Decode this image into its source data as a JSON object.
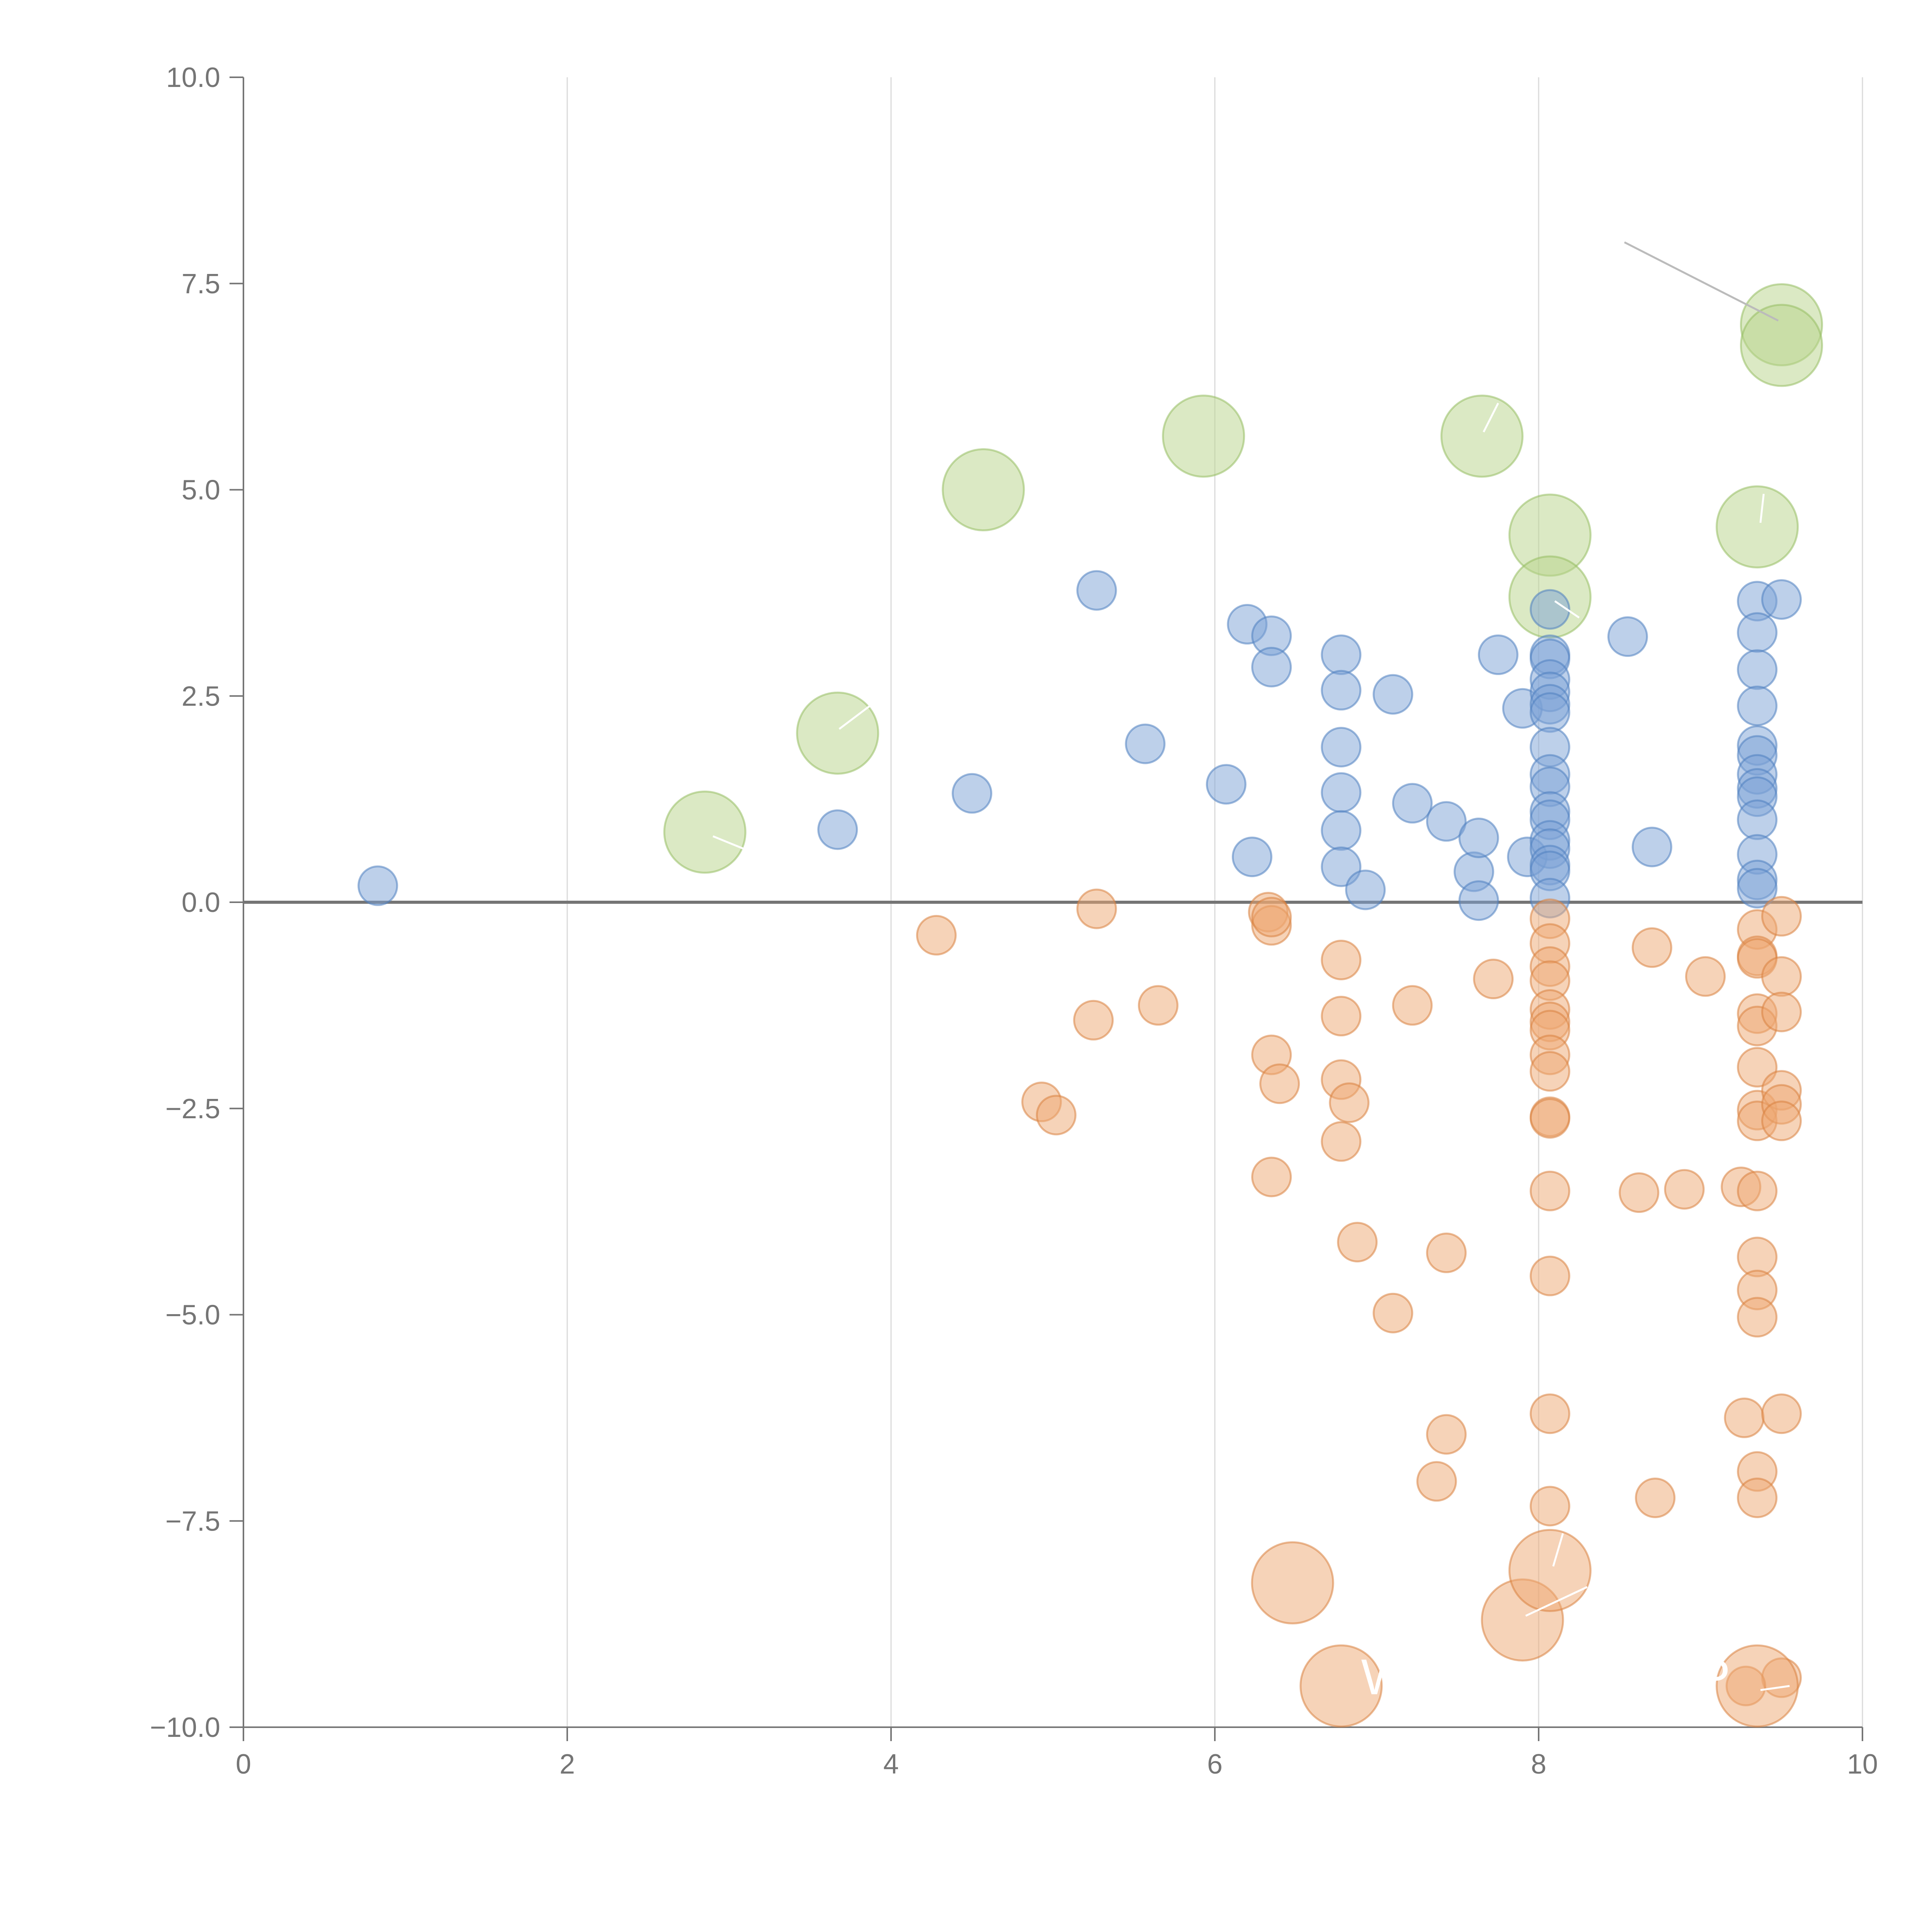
{
  "chart_data": {
    "type": "scatter",
    "title": "",
    "xlabel": "",
    "ylabel": "",
    "xlim": [
      0,
      10
    ],
    "ylim": [
      -10,
      10
    ],
    "x_ticks": [
      0,
      2,
      4,
      6,
      8,
      10
    ],
    "x_tick_labels": [
      "0",
      "2",
      "4",
      "6",
      "8",
      "10"
    ],
    "y_ticks": [
      10,
      7.5,
      5,
      2.5,
      0,
      -2.5,
      -5,
      -7.5,
      -10
    ],
    "y_tick_labels": [
      "10.0",
      "7.5",
      "5.0",
      "2.5",
      "0.0",
      "−2.5",
      "−5.0",
      "−7.5",
      "−10.0"
    ],
    "grid": "vertical",
    "reference_line_y": 0,
    "colors": {
      "positive": "#7ba1d6",
      "positive_stroke": "#4f7fc0",
      "negative": "#eea872",
      "negative_stroke": "#d9823f",
      "highlight": "#b7d38a",
      "highlight_stroke": "#96bd62",
      "axis": "#757575",
      "grid": "#dadada",
      "leader": "#bbbbbb"
    },
    "series": [
      {
        "name": "highlight",
        "size": "large",
        "points": [
          [
            2.85,
            0.85
          ],
          [
            3.67,
            2.05
          ],
          [
            4.57,
            5.0
          ],
          [
            5.93,
            5.65
          ],
          [
            7.65,
            5.65
          ],
          [
            8.07,
            4.45
          ],
          [
            8.07,
            3.7
          ],
          [
            9.35,
            4.55
          ],
          [
            9.5,
            7.0
          ],
          [
            9.5,
            6.75
          ]
        ]
      },
      {
        "name": "positive",
        "size": "small",
        "points": [
          [
            0.83,
            0.2
          ],
          [
            3.67,
            0.88
          ],
          [
            4.5,
            1.32
          ],
          [
            5.27,
            3.78
          ],
          [
            5.57,
            1.92
          ],
          [
            6.07,
            1.43
          ],
          [
            6.2,
            3.37
          ],
          [
            6.23,
            0.55
          ],
          [
            6.35,
            3.23
          ],
          [
            6.35,
            2.85
          ],
          [
            6.78,
            3.0
          ],
          [
            6.78,
            2.57
          ],
          [
            6.78,
            1.88
          ],
          [
            6.78,
            1.33
          ],
          [
            6.78,
            0.87
          ],
          [
            6.78,
            0.43
          ],
          [
            6.93,
            0.15
          ],
          [
            7.1,
            2.52
          ],
          [
            7.22,
            1.2
          ],
          [
            7.43,
            0.98
          ],
          [
            7.6,
            0.37
          ],
          [
            7.63,
            0.78
          ],
          [
            7.63,
            0.02
          ],
          [
            7.75,
            3.0
          ],
          [
            7.9,
            2.35
          ],
          [
            7.93,
            0.55
          ],
          [
            8.07,
            3.55
          ],
          [
            8.07,
            3.0
          ],
          [
            8.07,
            2.95
          ],
          [
            8.07,
            2.7
          ],
          [
            8.07,
            2.55
          ],
          [
            8.07,
            2.4
          ],
          [
            8.07,
            2.3
          ],
          [
            8.07,
            1.88
          ],
          [
            8.07,
            1.55
          ],
          [
            8.07,
            1.4
          ],
          [
            8.07,
            1.1
          ],
          [
            8.07,
            1.0
          ],
          [
            8.07,
            0.75
          ],
          [
            8.07,
            0.65
          ],
          [
            8.07,
            0.45
          ],
          [
            8.07,
            0.38
          ],
          [
            8.07,
            0.05
          ],
          [
            8.55,
            3.22
          ],
          [
            8.7,
            0.67
          ],
          [
            9.35,
            3.65
          ],
          [
            9.35,
            3.27
          ],
          [
            9.35,
            2.82
          ],
          [
            9.35,
            2.38
          ],
          [
            9.35,
            1.9
          ],
          [
            9.35,
            1.78
          ],
          [
            9.35,
            1.55
          ],
          [
            9.35,
            1.38
          ],
          [
            9.35,
            1.28
          ],
          [
            9.35,
            1.0
          ],
          [
            9.35,
            0.58
          ],
          [
            9.35,
            0.27
          ],
          [
            9.35,
            0.17
          ],
          [
            9.5,
            3.67
          ]
        ]
      },
      {
        "name": "negative",
        "size": "small",
        "points": [
          [
            4.28,
            -0.4
          ],
          [
            4.93,
            -2.42
          ],
          [
            5.02,
            -2.58
          ],
          [
            5.25,
            -1.43
          ],
          [
            5.27,
            -0.08
          ],
          [
            5.65,
            -1.25
          ],
          [
            6.33,
            -0.12
          ],
          [
            6.35,
            -0.28
          ],
          [
            6.35,
            -0.18
          ],
          [
            6.35,
            -1.85
          ],
          [
            6.35,
            -3.33
          ],
          [
            6.4,
            -2.2
          ],
          [
            6.78,
            -0.7
          ],
          [
            6.78,
            -1.38
          ],
          [
            6.78,
            -2.15
          ],
          [
            6.78,
            -2.9
          ],
          [
            6.83,
            -2.43
          ],
          [
            6.88,
            -4.12
          ],
          [
            7.1,
            -4.98
          ],
          [
            7.22,
            -1.25
          ],
          [
            7.37,
            -7.02
          ],
          [
            7.43,
            -4.25
          ],
          [
            7.43,
            -6.45
          ],
          [
            7.72,
            -0.93
          ],
          [
            8.07,
            -0.2
          ],
          [
            8.07,
            -0.5
          ],
          [
            8.07,
            -0.78
          ],
          [
            8.07,
            -0.95
          ],
          [
            8.07,
            -1.3
          ],
          [
            8.07,
            -1.45
          ],
          [
            8.07,
            -1.55
          ],
          [
            8.07,
            -1.85
          ],
          [
            8.07,
            -2.05
          ],
          [
            8.07,
            -2.6
          ],
          [
            8.07,
            -2.62
          ],
          [
            8.07,
            -3.5
          ],
          [
            8.07,
            -4.53
          ],
          [
            8.07,
            -6.2
          ],
          [
            8.07,
            -7.32
          ],
          [
            8.62,
            -3.52
          ],
          [
            8.7,
            -0.55
          ],
          [
            8.72,
            -7.22
          ],
          [
            8.9,
            -3.48
          ],
          [
            9.03,
            -0.9
          ],
          [
            9.25,
            -3.45
          ],
          [
            9.27,
            -6.25
          ],
          [
            9.35,
            -0.33
          ],
          [
            9.35,
            -0.65
          ],
          [
            9.35,
            -0.68
          ],
          [
            9.35,
            -1.35
          ],
          [
            9.35,
            -1.5
          ],
          [
            9.35,
            -2.0
          ],
          [
            9.35,
            -2.52
          ],
          [
            9.35,
            -2.65
          ],
          [
            9.35,
            -3.5
          ],
          [
            9.35,
            -4.3
          ],
          [
            9.35,
            -4.7
          ],
          [
            9.35,
            -5.03
          ],
          [
            9.35,
            -6.9
          ],
          [
            9.35,
            -7.22
          ],
          [
            9.5,
            -0.17
          ],
          [
            9.5,
            -0.9
          ],
          [
            9.5,
            -1.33
          ],
          [
            9.5,
            -2.28
          ],
          [
            9.5,
            -2.45
          ],
          [
            9.5,
            -2.65
          ],
          [
            9.5,
            -6.2
          ],
          [
            9.5,
            -9.4
          ],
          [
            9.28,
            -9.5
          ]
        ]
      },
      {
        "name": "negative-large",
        "size": "large",
        "points": [
          [
            6.48,
            -8.25
          ],
          [
            6.78,
            -9.5
          ],
          [
            7.9,
            -8.7
          ],
          [
            8.07,
            -8.1
          ],
          [
            9.35,
            -9.5
          ]
        ]
      }
    ],
    "annotations": [
      {
        "text": "W",
        "x": 7.05,
        "y": -9.6
      },
      {
        "text": "P",
        "x": 9.08,
        "y": -9.6
      }
    ]
  }
}
